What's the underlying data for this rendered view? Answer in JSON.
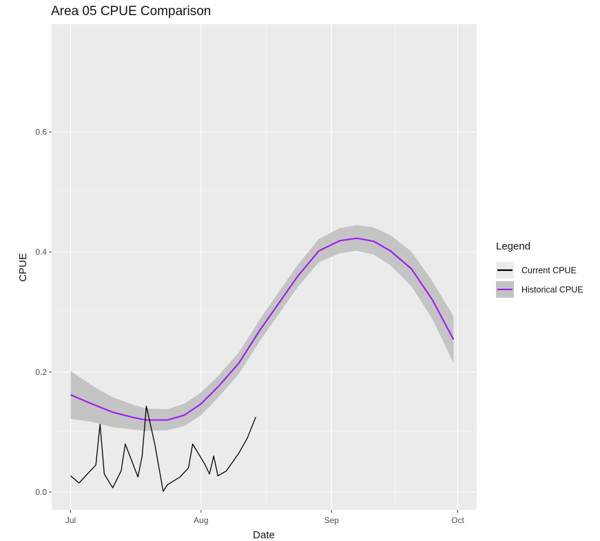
{
  "chart_data": {
    "type": "line",
    "title": "Area 05 CPUE Comparison",
    "xlabel": "Date",
    "ylabel": "CPUE",
    "x_axis": {
      "type": "date",
      "range": [
        "2023-07-01",
        "2023-10-01"
      ],
      "ticks": [
        {
          "label": "Jul",
          "date": "2023-07-01"
        },
        {
          "label": "Aug",
          "date": "2023-08-01"
        },
        {
          "label": "Sep",
          "date": "2023-09-01"
        },
        {
          "label": "Oct",
          "date": "2023-10-01"
        }
      ]
    },
    "y_axis": {
      "range": [
        -0.03,
        0.78
      ],
      "ticks": [
        0.0,
        0.2,
        0.4,
        0.6
      ],
      "tick_labels": [
        "0.0",
        "0.2",
        "0.4",
        "0.6"
      ]
    },
    "grid": true,
    "legend": {
      "title": "Legend",
      "placement": "right",
      "entries": [
        "Current CPUE",
        "Historical CPUE"
      ]
    },
    "series": [
      {
        "name": "Historical CPUE",
        "color": "#a020f0",
        "band_color": "#c4c4c4",
        "points": [
          {
            "x": "2023-07-01",
            "y": 0.162,
            "lo": 0.122,
            "hi": 0.202
          },
          {
            "x": "2023-07-06",
            "y": 0.147,
            "lo": 0.117,
            "hi": 0.178
          },
          {
            "x": "2023-07-11",
            "y": 0.133,
            "lo": 0.108,
            "hi": 0.158
          },
          {
            "x": "2023-07-16",
            "y": 0.124,
            "lo": 0.104,
            "hi": 0.145
          },
          {
            "x": "2023-07-19",
            "y": 0.12,
            "lo": 0.102,
            "hi": 0.139
          },
          {
            "x": "2023-07-24",
            "y": 0.12,
            "lo": 0.103,
            "hi": 0.138
          },
          {
            "x": "2023-07-28",
            "y": 0.128,
            "lo": 0.11,
            "hi": 0.147
          },
          {
            "x": "2023-08-01",
            "y": 0.147,
            "lo": 0.128,
            "hi": 0.166
          },
          {
            "x": "2023-08-05",
            "y": 0.175,
            "lo": 0.157,
            "hi": 0.193
          },
          {
            "x": "2023-08-10",
            "y": 0.215,
            "lo": 0.197,
            "hi": 0.233
          },
          {
            "x": "2023-08-15",
            "y": 0.27,
            "lo": 0.252,
            "hi": 0.288
          },
          {
            "x": "2023-08-19",
            "y": 0.31,
            "lo": 0.292,
            "hi": 0.329
          },
          {
            "x": "2023-08-24",
            "y": 0.36,
            "lo": 0.342,
            "hi": 0.379
          },
          {
            "x": "2023-08-29",
            "y": 0.402,
            "lo": 0.383,
            "hi": 0.422
          },
          {
            "x": "2023-09-03",
            "y": 0.419,
            "lo": 0.398,
            "hi": 0.44
          },
          {
            "x": "2023-09-07",
            "y": 0.423,
            "lo": 0.402,
            "hi": 0.445
          },
          {
            "x": "2023-09-11",
            "y": 0.418,
            "lo": 0.396,
            "hi": 0.441
          },
          {
            "x": "2023-09-15",
            "y": 0.402,
            "lo": 0.378,
            "hi": 0.428
          },
          {
            "x": "2023-09-20",
            "y": 0.372,
            "lo": 0.343,
            "hi": 0.401
          },
          {
            "x": "2023-09-25",
            "y": 0.32,
            "lo": 0.288,
            "hi": 0.351
          },
          {
            "x": "2023-09-30",
            "y": 0.254,
            "lo": 0.215,
            "hi": 0.293
          }
        ]
      },
      {
        "name": "Current CPUE",
        "color": "#000000",
        "points": [
          {
            "x": "2023-07-01",
            "y": 0.027
          },
          {
            "x": "2023-07-03",
            "y": 0.015
          },
          {
            "x": "2023-07-07",
            "y": 0.045
          },
          {
            "x": "2023-07-08",
            "y": 0.113
          },
          {
            "x": "2023-07-09",
            "y": 0.03
          },
          {
            "x": "2023-07-11",
            "y": 0.007
          },
          {
            "x": "2023-07-13",
            "y": 0.035
          },
          {
            "x": "2023-07-14",
            "y": 0.08
          },
          {
            "x": "2023-07-17",
            "y": 0.025
          },
          {
            "x": "2023-07-18",
            "y": 0.06
          },
          {
            "x": "2023-07-19",
            "y": 0.143
          },
          {
            "x": "2023-07-21",
            "y": 0.08
          },
          {
            "x": "2023-07-23",
            "y": 0.001
          },
          {
            "x": "2023-07-24",
            "y": 0.012
          },
          {
            "x": "2023-07-27",
            "y": 0.025
          },
          {
            "x": "2023-07-29",
            "y": 0.04
          },
          {
            "x": "2023-07-30",
            "y": 0.08
          },
          {
            "x": "2023-08-02",
            "y": 0.045
          },
          {
            "x": "2023-08-03",
            "y": 0.03
          },
          {
            "x": "2023-08-04",
            "y": 0.06
          },
          {
            "x": "2023-08-05",
            "y": 0.027
          },
          {
            "x": "2023-08-07",
            "y": 0.035
          },
          {
            "x": "2023-08-10",
            "y": 0.065
          },
          {
            "x": "2023-08-12",
            "y": 0.09
          },
          {
            "x": "2023-08-14",
            "y": 0.125
          }
        ]
      }
    ]
  }
}
